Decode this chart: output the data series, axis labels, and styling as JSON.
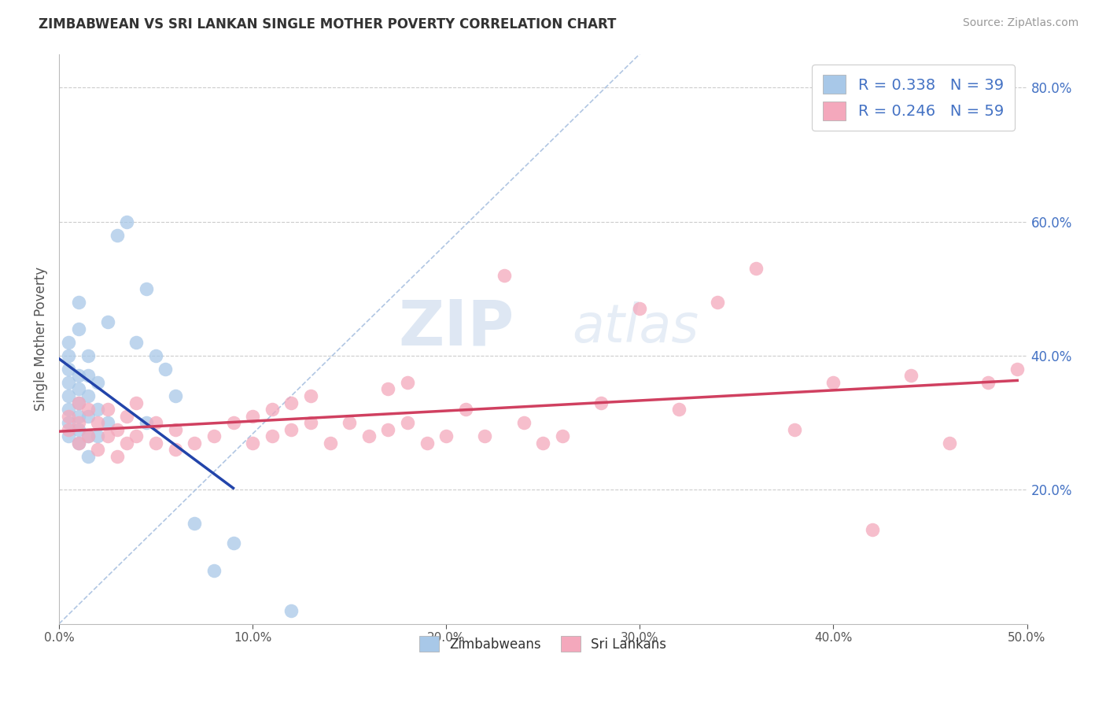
{
  "title": "ZIMBABWEAN VS SRI LANKAN SINGLE MOTHER POVERTY CORRELATION CHART",
  "source": "Source: ZipAtlas.com",
  "ylabel": "Single Mother Poverty",
  "xlim": [
    0.0,
    0.5
  ],
  "ylim": [
    0.0,
    0.85
  ],
  "R_zimbabwe": 0.338,
  "N_zimbabwe": 39,
  "R_srilanka": 0.246,
  "N_srilanka": 59,
  "legend_labels": [
    "Zimbabweans",
    "Sri Lankans"
  ],
  "watermark_zip": "ZIP",
  "watermark_atlas": "atlas",
  "color_zimbabwe": "#A8C8E8",
  "color_srilanka": "#F4A8BC",
  "line_color_zimbabwe": "#2244AA",
  "line_color_srilanka": "#D04060",
  "diagonal_color": "#A8C0E0",
  "legend_text_color": "#4472C4",
  "right_tick_color": "#4472C4",
  "zimbabwe_x": [
    0.005,
    0.005,
    0.005,
    0.005,
    0.005,
    0.005,
    0.005,
    0.005,
    0.01,
    0.01,
    0.01,
    0.01,
    0.01,
    0.01,
    0.01,
    0.01,
    0.015,
    0.015,
    0.015,
    0.015,
    0.015,
    0.015,
    0.02,
    0.02,
    0.02,
    0.025,
    0.025,
    0.03,
    0.035,
    0.04,
    0.045,
    0.045,
    0.05,
    0.055,
    0.06,
    0.07,
    0.08,
    0.09,
    0.12
  ],
  "zimbabwe_y": [
    0.28,
    0.3,
    0.32,
    0.34,
    0.36,
    0.38,
    0.4,
    0.42,
    0.27,
    0.29,
    0.31,
    0.33,
    0.35,
    0.37,
    0.44,
    0.48,
    0.25,
    0.28,
    0.31,
    0.34,
    0.37,
    0.4,
    0.28,
    0.32,
    0.36,
    0.3,
    0.45,
    0.58,
    0.6,
    0.42,
    0.3,
    0.5,
    0.4,
    0.38,
    0.34,
    0.15,
    0.08,
    0.12,
    0.02
  ],
  "srilanka_x": [
    0.005,
    0.005,
    0.01,
    0.01,
    0.01,
    0.015,
    0.015,
    0.02,
    0.02,
    0.025,
    0.025,
    0.03,
    0.03,
    0.035,
    0.035,
    0.04,
    0.04,
    0.05,
    0.05,
    0.06,
    0.06,
    0.07,
    0.08,
    0.09,
    0.1,
    0.1,
    0.11,
    0.11,
    0.12,
    0.12,
    0.13,
    0.13,
    0.14,
    0.15,
    0.16,
    0.17,
    0.17,
    0.18,
    0.18,
    0.19,
    0.2,
    0.21,
    0.22,
    0.23,
    0.24,
    0.25,
    0.26,
    0.28,
    0.3,
    0.32,
    0.34,
    0.36,
    0.38,
    0.4,
    0.42,
    0.44,
    0.46,
    0.48,
    0.495
  ],
  "srilanka_y": [
    0.29,
    0.31,
    0.27,
    0.3,
    0.33,
    0.28,
    0.32,
    0.26,
    0.3,
    0.28,
    0.32,
    0.25,
    0.29,
    0.27,
    0.31,
    0.28,
    0.33,
    0.27,
    0.3,
    0.26,
    0.29,
    0.27,
    0.28,
    0.3,
    0.27,
    0.31,
    0.28,
    0.32,
    0.29,
    0.33,
    0.3,
    0.34,
    0.27,
    0.3,
    0.28,
    0.29,
    0.35,
    0.3,
    0.36,
    0.27,
    0.28,
    0.32,
    0.28,
    0.52,
    0.3,
    0.27,
    0.28,
    0.33,
    0.47,
    0.32,
    0.48,
    0.53,
    0.29,
    0.36,
    0.14,
    0.37,
    0.27,
    0.36,
    0.38
  ]
}
